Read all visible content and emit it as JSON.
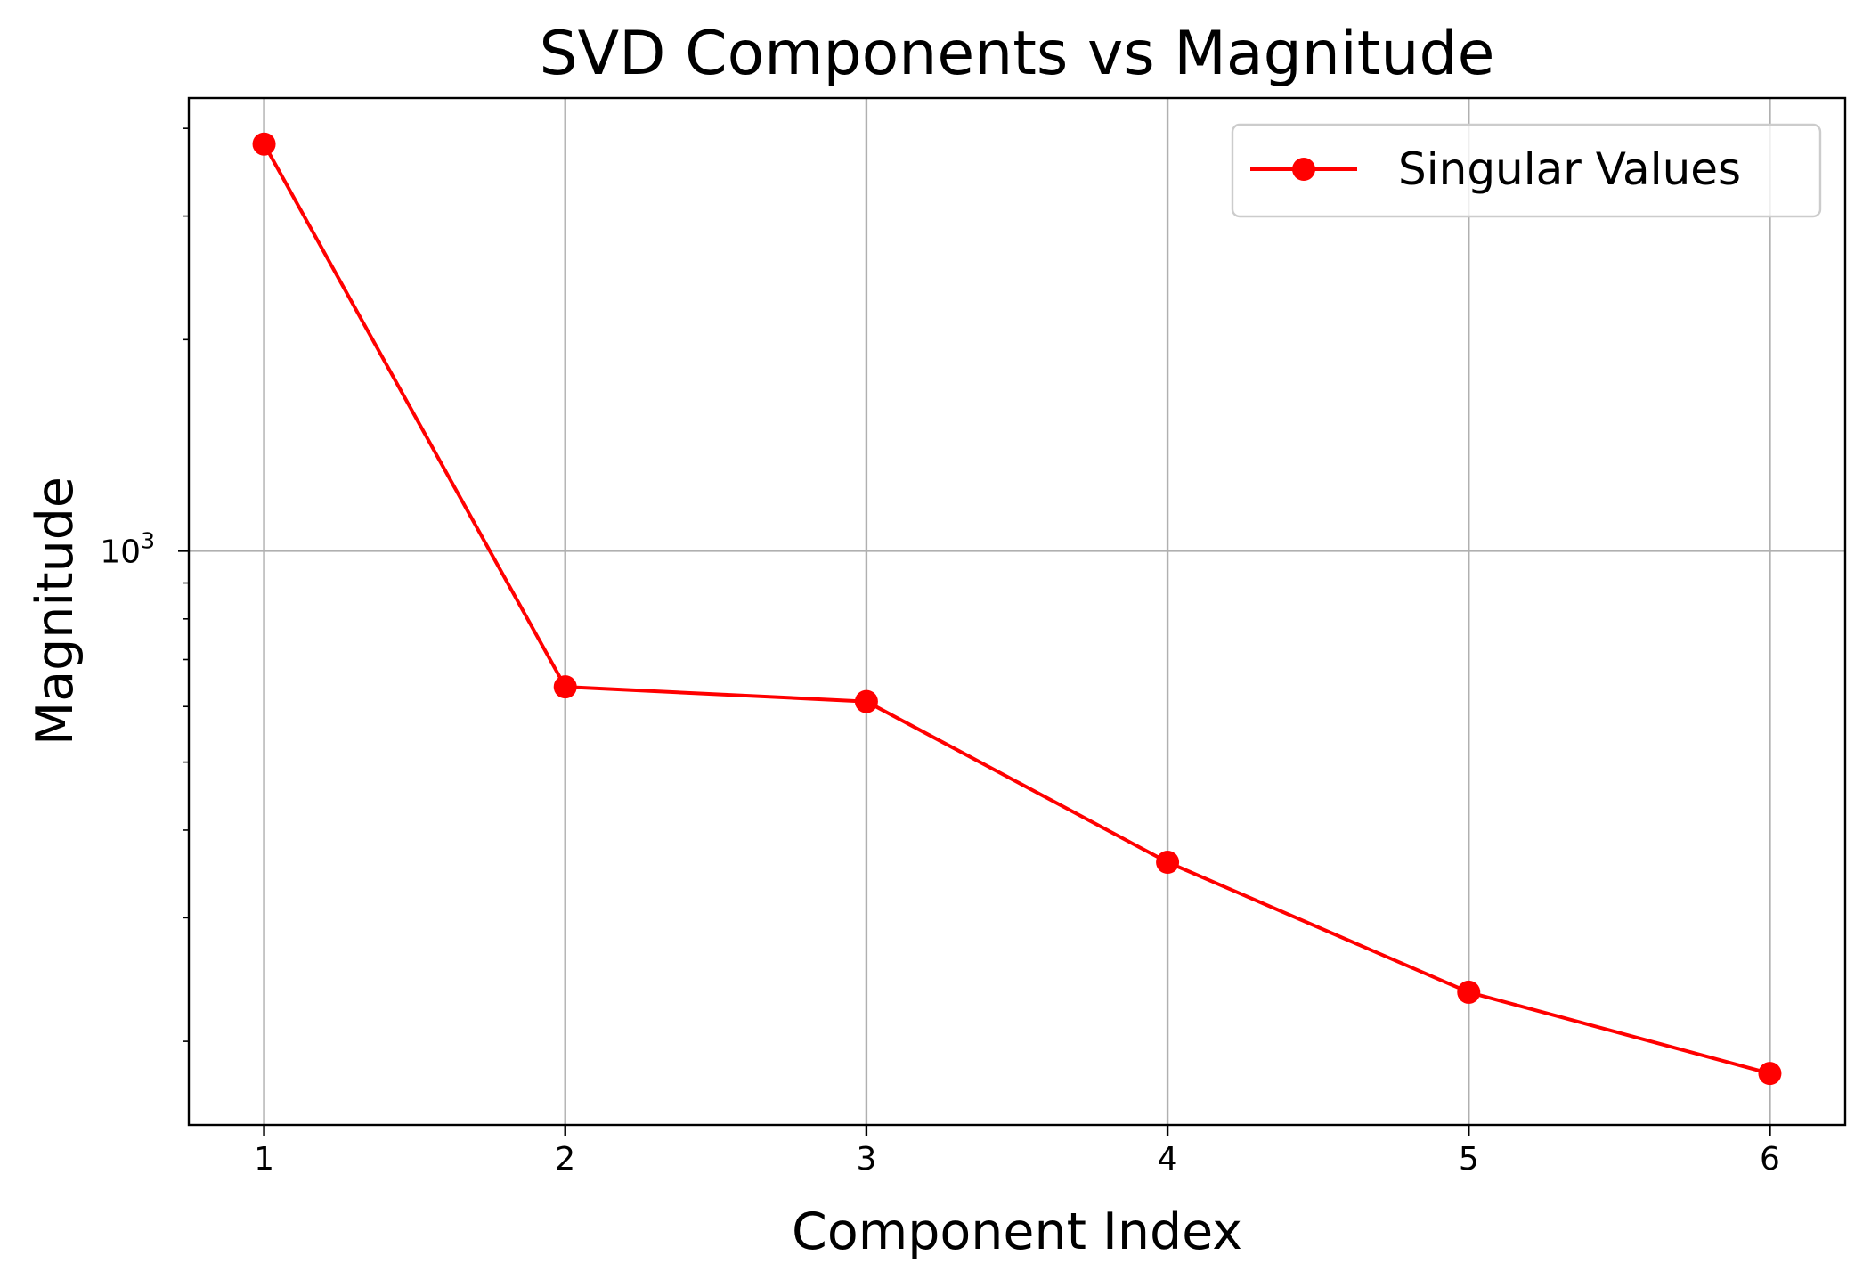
{
  "chart_data": {
    "type": "line",
    "title": "SVD Components vs Magnitude",
    "xlabel": "Component Index",
    "ylabel": "Magnitude",
    "x": [
      1,
      2,
      3,
      4,
      5,
      6
    ],
    "series": [
      {
        "name": "Singular Values",
        "values": [
          3800,
          640,
          610,
          360,
          235,
          180
        ],
        "color": "#ff0000",
        "marker": "circle"
      }
    ],
    "xticks": [
      "1",
      "2",
      "3",
      "4",
      "5",
      "6"
    ],
    "yscale": "log",
    "yticks_major": [
      1000
    ],
    "ytick_major_label": {
      "base": "10",
      "exp": "3"
    },
    "yticks_minor": [
      200,
      300,
      400,
      500,
      600,
      700,
      800,
      900,
      2000,
      3000,
      4000,
      5000
    ],
    "xlim": [
      0.75,
      6.25
    ],
    "ylim": [
      152,
      4420
    ],
    "grid": true,
    "legend_position": "top-right"
  }
}
